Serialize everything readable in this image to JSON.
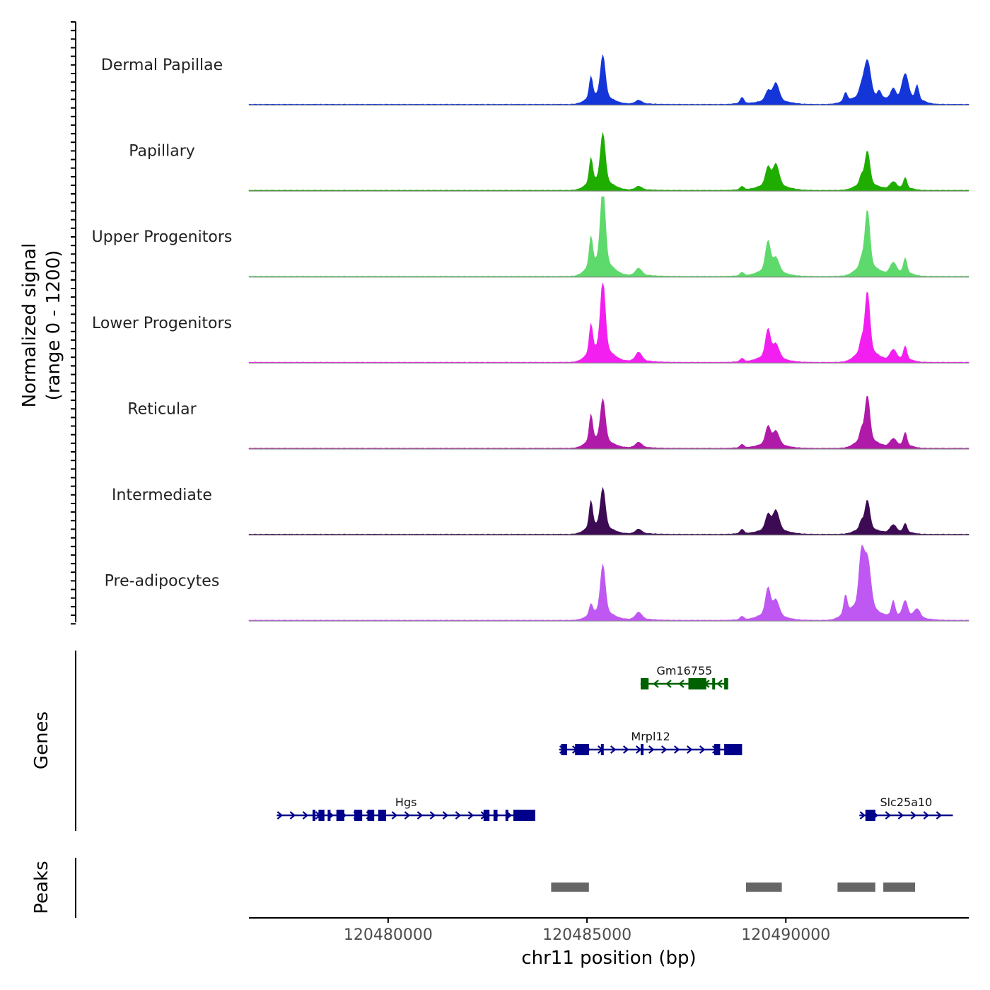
{
  "chart_data": {
    "type": "genome_browser",
    "y_axis_title_line1": "Normalized signal",
    "y_axis_title_line2": "(range 0 - 1200)",
    "signal_range": [
      0,
      1200
    ],
    "x_axis_title": "chr11 position (bp)",
    "x_range": [
      120476500,
      120494600
    ],
    "x_ticks": [
      120480000,
      120485000,
      120490000
    ],
    "x_tick_labels": [
      "120480000",
      "120485000",
      "120490000"
    ],
    "tracks": [
      {
        "name": "Dermal Papillae",
        "color": "#1436d9",
        "peaks": [
          [
            120485100,
            120
          ],
          [
            120485400,
            240
          ],
          [
            120486300,
            20
          ],
          [
            120488900,
            35
          ],
          [
            120489550,
            55
          ],
          [
            120489750,
            100
          ],
          [
            120491500,
            50
          ],
          [
            120491900,
            55
          ],
          [
            120492050,
            210
          ],
          [
            120492350,
            40
          ],
          [
            120492700,
            60
          ],
          [
            120493000,
            145
          ],
          [
            120493300,
            80
          ]
        ]
      },
      {
        "name": "Papillary",
        "color": "#1fad00",
        "peaks": [
          [
            120485100,
            140
          ],
          [
            120485400,
            280
          ],
          [
            120486300,
            20
          ],
          [
            120488900,
            20
          ],
          [
            120489550,
            100
          ],
          [
            120489750,
            120
          ],
          [
            120491900,
            50
          ],
          [
            120492050,
            190
          ],
          [
            120492700,
            40
          ],
          [
            120493000,
            60
          ]
        ]
      },
      {
        "name": "Upper Progenitors",
        "color": "#5ed96b",
        "peaks": [
          [
            120485100,
            165
          ],
          [
            120485400,
            440
          ],
          [
            120486300,
            40
          ],
          [
            120488900,
            20
          ],
          [
            120489550,
            165
          ],
          [
            120489750,
            75
          ],
          [
            120491900,
            45
          ],
          [
            120492050,
            325
          ],
          [
            120492700,
            65
          ],
          [
            120493000,
            85
          ]
        ]
      },
      {
        "name": "Lower Progenitors",
        "color": "#f21ff0",
        "peaks": [
          [
            120485100,
            160
          ],
          [
            120485400,
            400
          ],
          [
            120486300,
            50
          ],
          [
            120488900,
            20
          ],
          [
            120489550,
            155
          ],
          [
            120489750,
            75
          ],
          [
            120491900,
            65
          ],
          [
            120492050,
            345
          ],
          [
            120492700,
            60
          ],
          [
            120493000,
            75
          ]
        ]
      },
      {
        "name": "Reticular",
        "color": "#b01aa8",
        "peaks": [
          [
            120485100,
            150
          ],
          [
            120485400,
            240
          ],
          [
            120486300,
            30
          ],
          [
            120488900,
            20
          ],
          [
            120489550,
            100
          ],
          [
            120489750,
            75
          ],
          [
            120491900,
            60
          ],
          [
            120492050,
            255
          ],
          [
            120492700,
            45
          ],
          [
            120493000,
            75
          ]
        ]
      },
      {
        "name": "Intermediate",
        "color": "#3d0a54",
        "peaks": [
          [
            120485100,
            150
          ],
          [
            120485400,
            225
          ],
          [
            120486300,
            25
          ],
          [
            120488900,
            25
          ],
          [
            120489550,
            85
          ],
          [
            120489750,
            110
          ],
          [
            120491900,
            45
          ],
          [
            120492050,
            165
          ],
          [
            120492700,
            45
          ],
          [
            120493000,
            50
          ]
        ]
      },
      {
        "name": "Pre-adipocytes",
        "color": "#bf57f2",
        "peaks": [
          [
            120485100,
            60
          ],
          [
            120485400,
            275
          ],
          [
            120486300,
            40
          ],
          [
            120488900,
            20
          ],
          [
            120489550,
            150
          ],
          [
            120489750,
            85
          ],
          [
            120491500,
            105
          ],
          [
            120491900,
            285
          ],
          [
            120492050,
            275
          ],
          [
            120492700,
            85
          ],
          [
            120493000,
            90
          ],
          [
            120493300,
            50
          ]
        ]
      }
    ],
    "genes_title": "Genes",
    "genes": [
      {
        "name": "Gm16755",
        "color": "#006100",
        "strand": "-",
        "start": 120486350,
        "end": 120488550,
        "exons": [
          [
            120486350,
            120486550
          ],
          [
            120487550,
            120488000
          ],
          [
            120488150,
            120488200
          ],
          [
            120488450,
            120488550
          ]
        ]
      },
      {
        "name": "Mrpl12",
        "color": "#00008b",
        "strand": "+",
        "start": 120484300,
        "end": 120488900,
        "exons": [
          [
            120484350,
            120484500
          ],
          [
            120484700,
            120485050
          ],
          [
            120485350,
            120485400
          ],
          [
            120486350,
            120486400
          ],
          [
            120488200,
            120488350
          ],
          [
            120488450,
            120488900
          ]
        ]
      },
      {
        "name": "Hgs",
        "color": "#00008b",
        "strand": "+",
        "start": 120477200,
        "end": 120483700,
        "exons": [
          [
            120478100,
            120478130
          ],
          [
            120478250,
            120478400
          ],
          [
            120478480,
            120478510
          ],
          [
            120478700,
            120478900
          ],
          [
            120479150,
            120479350
          ],
          [
            120479480,
            120479650
          ],
          [
            120479750,
            120479950
          ],
          [
            120482400,
            120482550
          ],
          [
            120482650,
            120482750
          ],
          [
            120482950,
            120483000
          ],
          [
            120483150,
            120483700
          ]
        ]
      },
      {
        "name": "Slc25a10",
        "color": "#00008b",
        "strand": "+",
        "start": 120491850,
        "end": 120494200,
        "exons": [
          [
            120492000,
            120492250
          ]
        ]
      }
    ],
    "peaks_title": "Peaks",
    "peak_regions": [
      [
        120484100,
        120485050
      ],
      [
        120489000,
        120489900
      ],
      [
        120491300,
        120492250
      ],
      [
        120492450,
        120493250
      ]
    ],
    "peak_color": "#666666"
  }
}
